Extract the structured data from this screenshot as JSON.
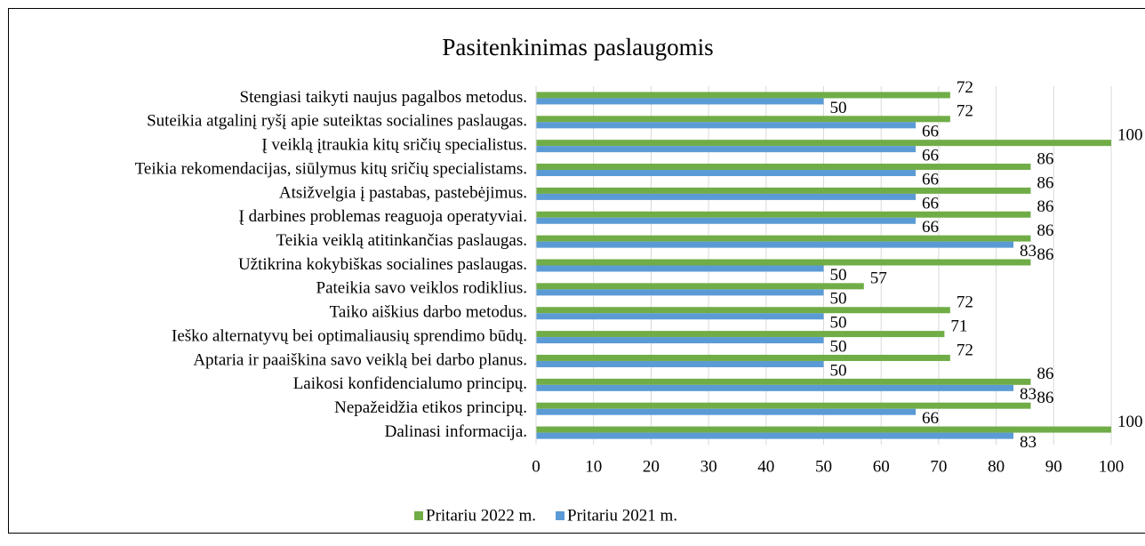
{
  "chart_data": {
    "type": "hbar",
    "title": "Pasitenkinimas paslaugomis",
    "categories": [
      "Stengiasi taikyti naujus pagalbos metodus.",
      "Suteikia atgalinį ryšį apie suteiktas socialines paslaugas.",
      "Į veiklą įtraukia kitų sričių specialistus.",
      "Teikia rekomendacijas, siūlymus kitų sričių specialistams.",
      "Atsižvelgia į pastabas, pastebėjimus.",
      "Į darbines problemas reaguoja operatyviai.",
      "Teikia veiklą atitinkančias paslaugas.",
      "Užtikrina kokybiškas socialines paslaugas.",
      "Pateikia savo veiklos rodiklius.",
      "Taiko aiškius darbo metodus.",
      "Ieško alternatyvų bei optimaliausių sprendimo būdų.",
      "Aptaria ir paaiškina savo veiklą bei darbo planus.",
      "Laikosi konfidencialumo principų.",
      "Nepažeidžia etikos principų.",
      "Dalinasi informacija."
    ],
    "series": [
      {
        "name": "Pritariu 2022 m.",
        "color": "#70ad47",
        "values": [
          72,
          72,
          100,
          86,
          86,
          86,
          86,
          86,
          57,
          72,
          71,
          72,
          86,
          86,
          100
        ]
      },
      {
        "name": "Pritariu 2021 m.",
        "color": "#5b9bd5",
        "values": [
          50,
          66,
          66,
          66,
          66,
          66,
          83,
          50,
          50,
          50,
          50,
          50,
          83,
          66,
          83
        ]
      }
    ],
    "xlim": [
      0,
      100
    ],
    "xticks": [
      0,
      10,
      20,
      30,
      40,
      50,
      60,
      70,
      80,
      90,
      100
    ],
    "grid": true,
    "legend": "bottom"
  }
}
